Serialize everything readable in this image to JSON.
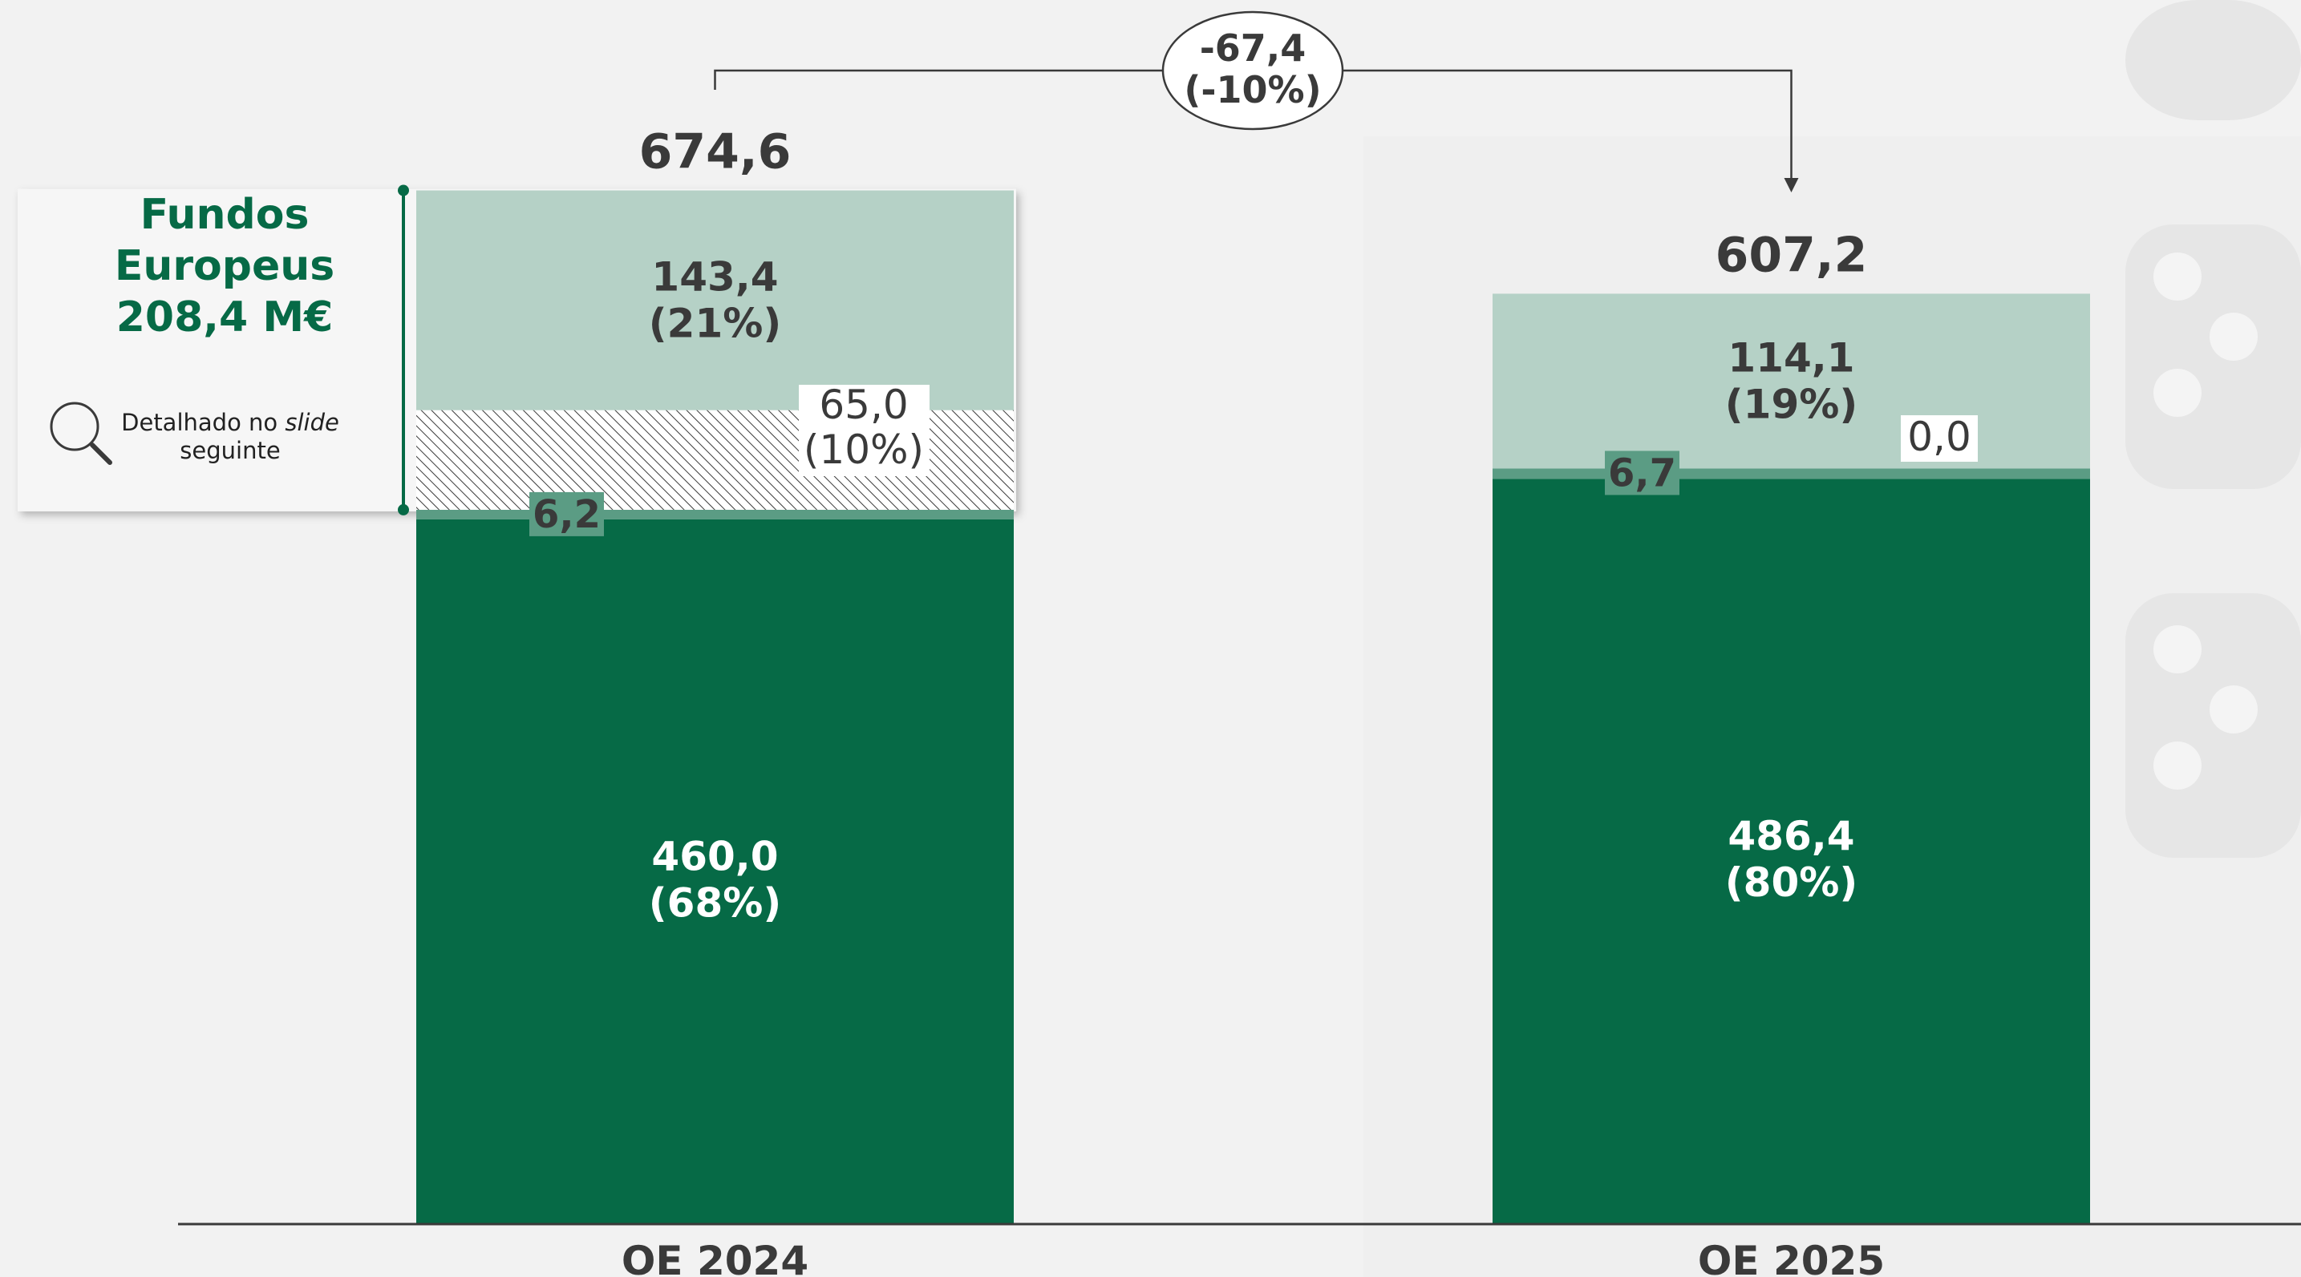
{
  "chart_data": {
    "type": "bar",
    "stacked": true,
    "categories": [
      "OE 2024",
      "OE 2025"
    ],
    "totals": [
      "674,6",
      "607,2"
    ],
    "total_values": [
      674.6,
      607.2
    ],
    "ylim": [
      0,
      700
    ],
    "series": [
      {
        "values": [
          460.0,
          486.4
        ],
        "labels": [
          "460,0\n(68%)",
          "486,4\n(80%)"
        ],
        "color": "#066a46",
        "text_color": "#ffffff"
      },
      {
        "values": [
          6.2,
          6.7
        ],
        "labels": [
          "6,2",
          "6,7"
        ],
        "color": "#5b9c84",
        "text_color": "#3a3a3a"
      },
      {
        "values": [
          65.0,
          0.0
        ],
        "labels": [
          "65,0\n(10%)",
          "0,0"
        ],
        "color": "#ffffff",
        "pattern": "hatch",
        "text_color": "#3a3a3a"
      },
      {
        "values": [
          143.4,
          114.1
        ],
        "labels": [
          "143,4\n(21%)",
          "114,1\n(19%)"
        ],
        "color": "#b5d1c6",
        "text_color": "#3a3a3a"
      }
    ],
    "change": {
      "value": "-67,4",
      "percent": "(-10%)"
    },
    "callout": {
      "title_lines": [
        "Fundos",
        "Europeus",
        "208,4 M€"
      ],
      "note_before": "Detalhado no ",
      "note_italic": "slide",
      "note_after": "seguinte",
      "icon": "magnifier-icon"
    }
  },
  "colors": {
    "background": "#f2f2f2",
    "dark_green": "#066a46",
    "light_green": "#b5d1c6",
    "mid_green": "#5b9c84",
    "text_dark": "#3a3a3a"
  }
}
